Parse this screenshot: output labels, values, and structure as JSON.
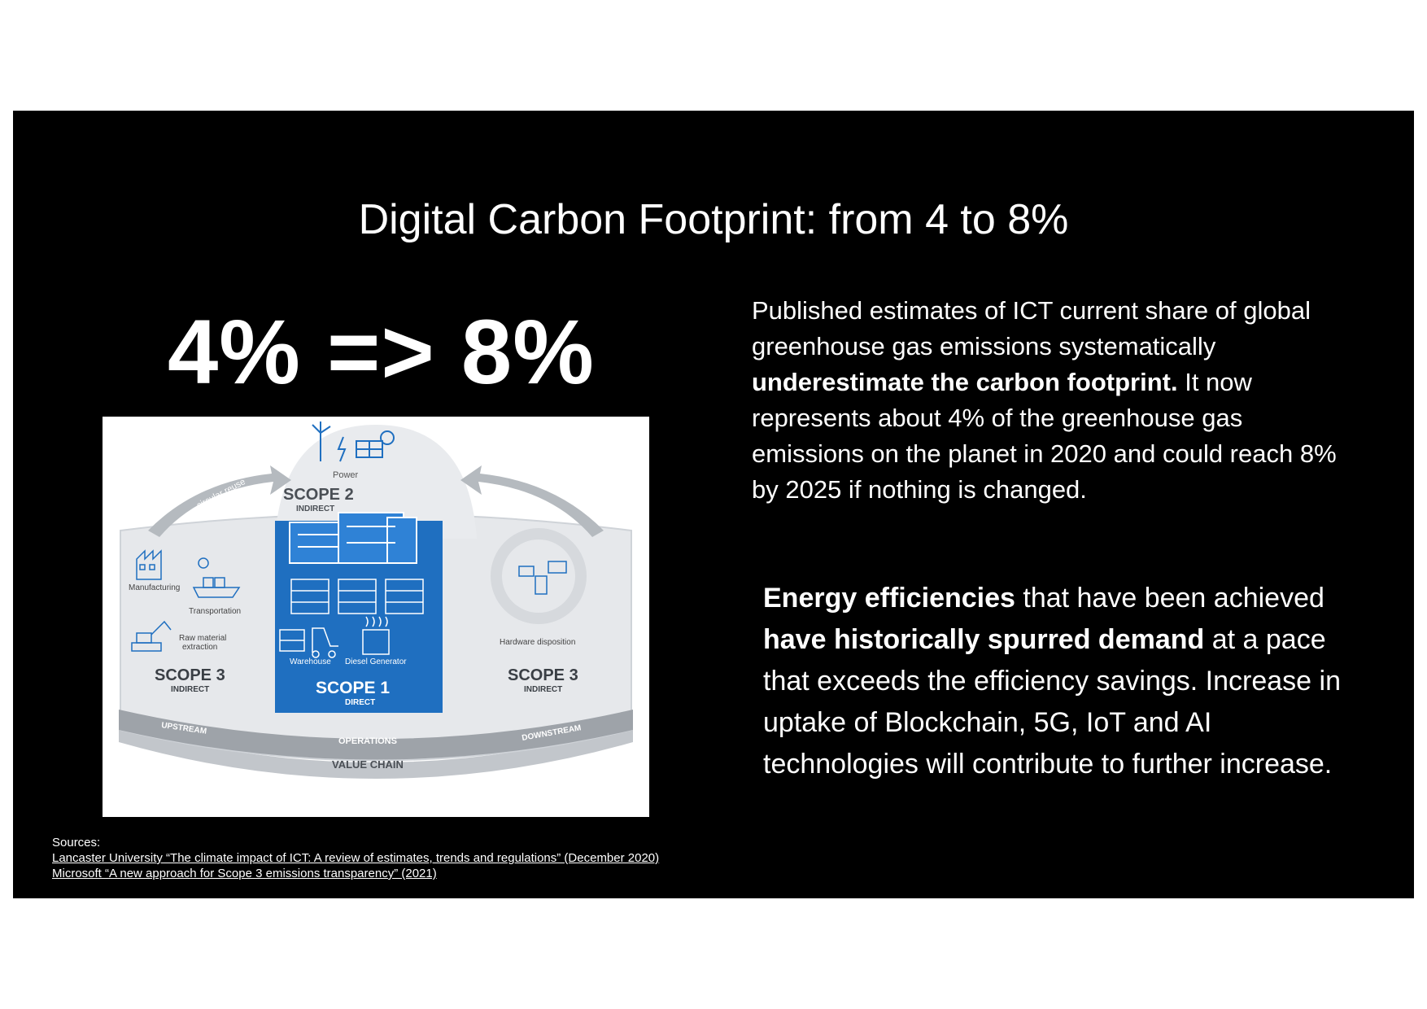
{
  "slide": {
    "title": "Digital Carbon Footprint: from 4 to 8%",
    "headline": "4% => 8%"
  },
  "paragraph1": {
    "part1": "Published estimates of ICT current share of global greenhouse gas emissions systematically ",
    "bold1": "underestimate the carbon footprint.",
    "part2": " It now represents about 4% of the greenhouse gas emissions on the planet in 2020 and could reach 8% by 2025 if nothing is changed."
  },
  "paragraph2": {
    "bold1": "Energy efficiencies",
    "part1": " that have been achieved ",
    "bold2": "have historically  spurred demand",
    "part2": " at a pace that exceeds the efficiency savings. Increase in uptake of Blockchain, 5G, IoT and AI technologies will contribute to further increase."
  },
  "diagram": {
    "power": "Power",
    "scope2": "SCOPE 2",
    "scope2_sub": "INDIRECT",
    "circular_left": "circular reuse",
    "circular_right": "circular reuse",
    "manufacturing": "Manufacturing",
    "transportation": "Transportation",
    "raw_material": "Raw material",
    "extraction": "extraction",
    "warehouse": "Warehouse",
    "diesel": "Diesel Generator",
    "hardware": "Hardware disposition",
    "scope3_left": "SCOPE 3",
    "scope3_left_sub": "INDIRECT",
    "scope1": "SCOPE 1",
    "scope1_sub": "DIRECT",
    "scope3_right": "SCOPE 3",
    "scope3_right_sub": "INDIRECT",
    "upstream": "UPSTREAM",
    "operations": "OPERATIONS",
    "downstream": "DOWNSTREAM",
    "value_chain": "VALUE CHAIN"
  },
  "sources": {
    "label": "Sources:",
    "items": [
      "Lancaster University “The climate impact of ICT: A review of estimates, trends and regulations” (December 2020)",
      "Microsoft “A new approach for Scope 3 emissions transparency” (2021)"
    ]
  },
  "colors": {
    "background": "#000000",
    "text": "#ffffff",
    "scope1_blue": "#1f6fc0",
    "gray": "#c9ccd0"
  }
}
